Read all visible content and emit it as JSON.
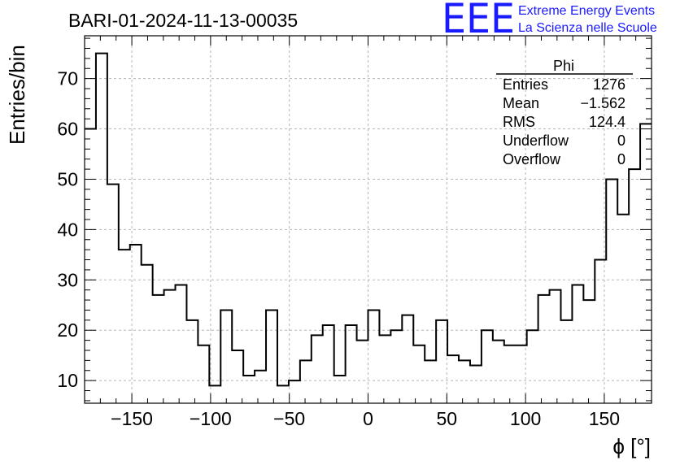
{
  "chart_data": {
    "type": "histogram",
    "title": "BARI-01-2024-11-13-00035",
    "xlabel": "ϕ [°]",
    "ylabel": "Entries/bin",
    "xlim": [
      -180,
      180
    ],
    "ylim": [
      5.5,
      78.5
    ],
    "x_ticks": [
      -150,
      -100,
      -50,
      0,
      50,
      100,
      150
    ],
    "x_tick_labels": [
      "−150",
      "−100",
      "−50",
      "0",
      "50",
      "100",
      "150"
    ],
    "y_ticks": [
      10,
      20,
      30,
      40,
      50,
      60,
      70
    ],
    "y_tick_labels": [
      "10",
      "20",
      "30",
      "40",
      "50",
      "60",
      "70"
    ],
    "grid": true,
    "bin_edges_start": -180,
    "bin_width": 7.2,
    "values": [
      60,
      75,
      49,
      36,
      37,
      33,
      27,
      28,
      29,
      22,
      17,
      9,
      24,
      16,
      11,
      12,
      24,
      9,
      10,
      14,
      19,
      21,
      11,
      21,
      18,
      24,
      19,
      20,
      23,
      17,
      14,
      22,
      15,
      14,
      13,
      20,
      18,
      17,
      17,
      20,
      27,
      28,
      22,
      29,
      26,
      34,
      50,
      43,
      52,
      61
    ],
    "stats_box": {
      "name": "Phi",
      "rows": [
        {
          "label": "Entries",
          "value": "1276"
        },
        {
          "label": "Mean",
          "value": "−1.562"
        },
        {
          "label": "RMS",
          "value": "124.4"
        },
        {
          "label": "Underflow",
          "value": "0"
        },
        {
          "label": "Overflow",
          "value": "0"
        }
      ]
    }
  },
  "logo": {
    "text": "EEE",
    "line1": "Extreme Energy Events",
    "line2": "La Scienza nelle Scuole",
    "color": "#1a1aff"
  }
}
